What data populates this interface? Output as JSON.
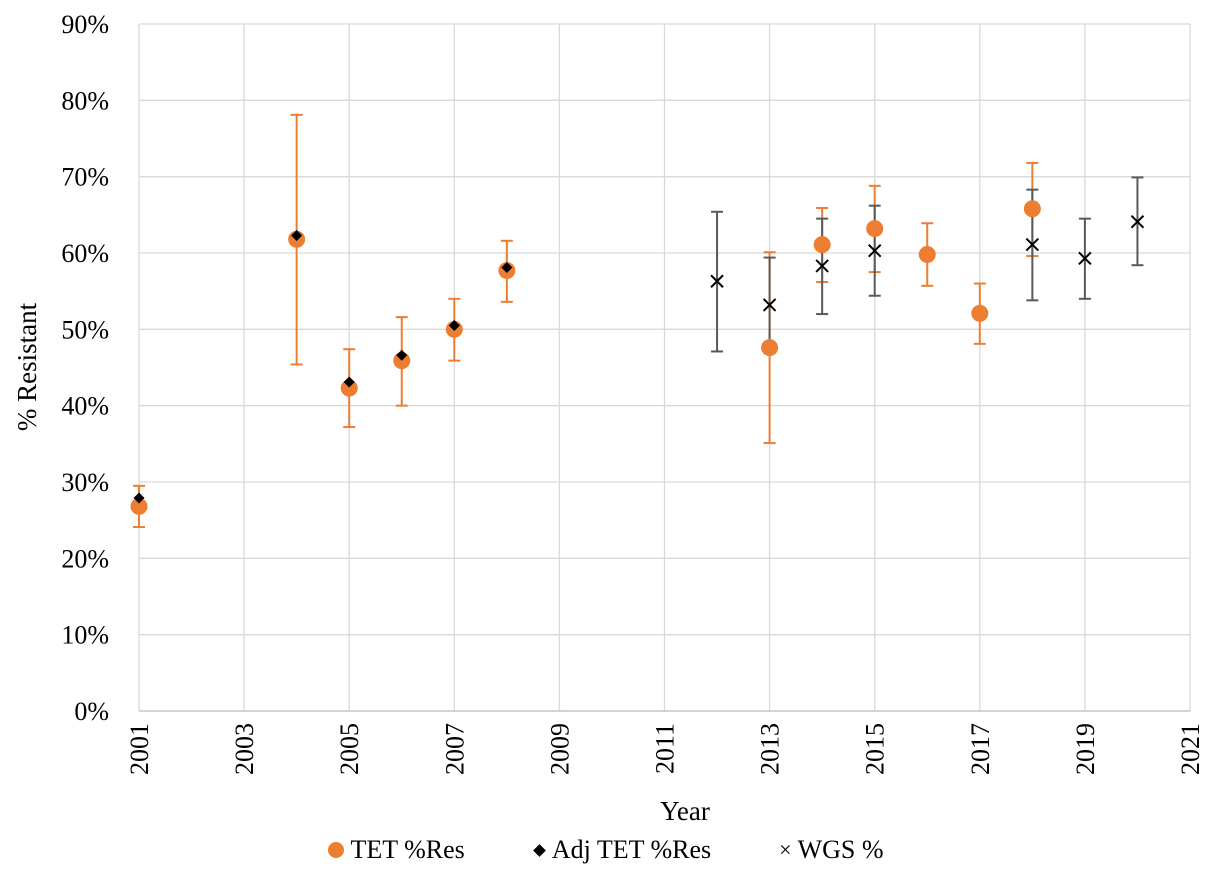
{
  "chart_data": {
    "type": "scatter",
    "xlabel": "Year",
    "ylabel": "% Resistant",
    "xlim": [
      2001,
      2021
    ],
    "ylim": [
      0,
      90
    ],
    "x_ticks": [
      2001,
      2003,
      2005,
      2007,
      2009,
      2011,
      2013,
      2015,
      2017,
      2019,
      2021
    ],
    "y_ticks": [
      0,
      10,
      20,
      30,
      40,
      50,
      60,
      70,
      80,
      90
    ],
    "y_tick_labels": [
      "0%",
      "10%",
      "20%",
      "30%",
      "40%",
      "50%",
      "60%",
      "70%",
      "80%",
      "90%"
    ],
    "grid": true,
    "legend_position": "bottom",
    "series": [
      {
        "name": "TET %Res",
        "marker": "circle",
        "color": "#ED7D31",
        "points": [
          {
            "x": 2001,
            "y": 26.8,
            "low": 24.1,
            "high": 29.5
          },
          {
            "x": 2004,
            "y": 61.8,
            "low": 45.4,
            "high": 78.1
          },
          {
            "x": 2005,
            "y": 42.3,
            "low": 37.2,
            "high": 47.4
          },
          {
            "x": 2006,
            "y": 45.9,
            "low": 40.0,
            "high": 51.6
          },
          {
            "x": 2007,
            "y": 50.0,
            "low": 45.9,
            "high": 54.0
          },
          {
            "x": 2008,
            "y": 57.7,
            "low": 53.6,
            "high": 61.6
          },
          {
            "x": 2013,
            "y": 47.6,
            "low": 35.1,
            "high": 60.1
          },
          {
            "x": 2014,
            "y": 61.1,
            "low": 56.2,
            "high": 65.9
          },
          {
            "x": 2015,
            "y": 63.2,
            "low": 57.5,
            "high": 68.8
          },
          {
            "x": 2016,
            "y": 59.8,
            "low": 55.7,
            "high": 63.9
          },
          {
            "x": 2017,
            "y": 52.1,
            "low": 48.1,
            "high": 56.0
          },
          {
            "x": 2018,
            "y": 65.8,
            "low": 59.6,
            "high": 71.8
          }
        ]
      },
      {
        "name": "Adj TET %Res",
        "marker": "diamond",
        "color": "#000000",
        "points": [
          {
            "x": 2001,
            "y": 27.9
          },
          {
            "x": 2004,
            "y": 62.3
          },
          {
            "x": 2005,
            "y": 43.1
          },
          {
            "x": 2006,
            "y": 46.6
          },
          {
            "x": 2007,
            "y": 50.5
          },
          {
            "x": 2008,
            "y": 58.1
          }
        ]
      },
      {
        "name": "WGS %",
        "marker": "x",
        "color": "#000000",
        "errorbar_color": "#595959",
        "points": [
          {
            "x": 2012,
            "y": 56.3,
            "low": 47.1,
            "high": 65.4
          },
          {
            "x": 2013,
            "y": 53.2,
            "low": 46.9,
            "high": 59.4
          },
          {
            "x": 2014,
            "y": 58.3,
            "low": 52.0,
            "high": 64.5
          },
          {
            "x": 2015,
            "y": 60.3,
            "low": 54.4,
            "high": 66.2
          },
          {
            "x": 2018,
            "y": 61.1,
            "low": 53.8,
            "high": 68.3
          },
          {
            "x": 2019,
            "y": 59.3,
            "low": 54.0,
            "high": 64.5
          },
          {
            "x": 2020,
            "y": 64.1,
            "low": 58.4,
            "high": 69.9
          }
        ]
      }
    ]
  }
}
